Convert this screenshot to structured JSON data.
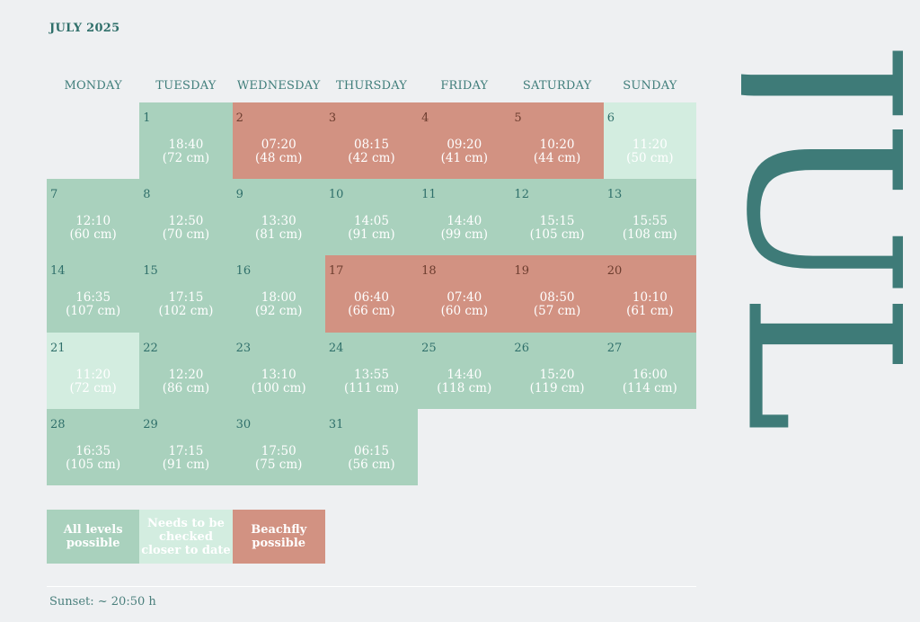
{
  "title": "JULY 2025",
  "big_month": "JUL",
  "weekdays": [
    "MONDAY",
    "TUESDAY",
    "WEDNESDAY",
    "THURSDAY",
    "FRIDAY",
    "SATURDAY",
    "SUNDAY"
  ],
  "days": [
    {
      "day": "1",
      "time": "18:40",
      "level": "(72 cm)",
      "status": "green"
    },
    {
      "day": "2",
      "time": "07:20",
      "level": "(48 cm)",
      "status": "red"
    },
    {
      "day": "3",
      "time": "08:15",
      "level": "(42 cm)",
      "status": "red"
    },
    {
      "day": "4",
      "time": "09:20",
      "level": "(41 cm)",
      "status": "red"
    },
    {
      "day": "5",
      "time": "10:20",
      "level": "(44 cm)",
      "status": "red"
    },
    {
      "day": "6",
      "time": "11:20",
      "level": "(50 cm)",
      "status": "light"
    },
    {
      "day": "7",
      "time": "12:10",
      "level": "(60 cm)",
      "status": "green"
    },
    {
      "day": "8",
      "time": "12:50",
      "level": "(70 cm)",
      "status": "green"
    },
    {
      "day": "9",
      "time": "13:30",
      "level": "(81 cm)",
      "status": "green"
    },
    {
      "day": "10",
      "time": "14:05",
      "level": "(91 cm)",
      "status": "green"
    },
    {
      "day": "11",
      "time": "14:40",
      "level": "(99 cm)",
      "status": "green"
    },
    {
      "day": "12",
      "time": "15:15",
      "level": "(105 cm)",
      "status": "green"
    },
    {
      "day": "13",
      "time": "15:55",
      "level": "(108 cm)",
      "status": "green"
    },
    {
      "day": "14",
      "time": "16:35",
      "level": "(107 cm)",
      "status": "green"
    },
    {
      "day": "15",
      "time": "17:15",
      "level": "(102 cm)",
      "status": "green"
    },
    {
      "day": "16",
      "time": "18:00",
      "level": "(92 cm)",
      "status": "green"
    },
    {
      "day": "17",
      "time": "06:40",
      "level": "(66 cm)",
      "status": "red"
    },
    {
      "day": "18",
      "time": "07:40",
      "level": "(60 cm)",
      "status": "red"
    },
    {
      "day": "19",
      "time": "08:50",
      "level": "(57 cm)",
      "status": "red"
    },
    {
      "day": "20",
      "time": "10:10",
      "level": "(61 cm)",
      "status": "red"
    },
    {
      "day": "21",
      "time": "11:20",
      "level": "(72 cm)",
      "status": "light"
    },
    {
      "day": "22",
      "time": "12:20",
      "level": "(86 cm)",
      "status": "green"
    },
    {
      "day": "23",
      "time": "13:10",
      "level": "(100 cm)",
      "status": "green"
    },
    {
      "day": "24",
      "time": "13:55",
      "level": "(111 cm)",
      "status": "green"
    },
    {
      "day": "25",
      "time": "14:40",
      "level": "(118 cm)",
      "status": "green"
    },
    {
      "day": "26",
      "time": "15:20",
      "level": "(119 cm)",
      "status": "green"
    },
    {
      "day": "27",
      "time": "16:00",
      "level": "(114 cm)",
      "status": "green"
    },
    {
      "day": "28",
      "time": "16:35",
      "level": "(105 cm)",
      "status": "green"
    },
    {
      "day": "29",
      "time": "17:15",
      "level": "(91 cm)",
      "status": "green"
    },
    {
      "day": "30",
      "time": "17:50",
      "level": "(75 cm)",
      "status": "green"
    },
    {
      "day": "31",
      "time": "06:15",
      "level": "(56 cm)",
      "status": "green"
    }
  ],
  "legend": [
    {
      "label": "All levels possible",
      "status": "green"
    },
    {
      "label": "Needs to be checked closer to date",
      "status": "light"
    },
    {
      "label": "Beachfly possible",
      "status": "red"
    }
  ],
  "colors": {
    "green": "#a9d1bd",
    "light": "#d3ede0",
    "red": "#d29282",
    "accent": "#3e7b78"
  },
  "footer": {
    "sunset": "Sunset: ~ 20:50 h"
  }
}
